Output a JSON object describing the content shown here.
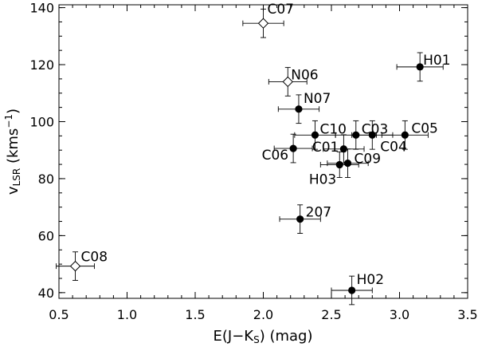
{
  "chart_data": {
    "type": "scatter",
    "title": "",
    "xlabel": "E(J−K",
    "xlabel_sub": "S",
    "xlabel_tail": ") (mag)",
    "ylabel": "v",
    "ylabel_sub": "LSR",
    "ylabel_tail": " (kms",
    "ylabel_sup": "−1",
    "ylabel_close": ")",
    "xlim": [
      0.5,
      3.5
    ],
    "ylim": [
      38,
      141
    ],
    "x_ticks": [
      0.5,
      1.0,
      1.5,
      2.0,
      2.5,
      3.0,
      3.5
    ],
    "x_tick_labels": [
      "0.5",
      "1.0",
      "1.5",
      "2.0",
      "2.5",
      "3.0",
      "3.5"
    ],
    "y_ticks": [
      40,
      60,
      80,
      100,
      120,
      140
    ],
    "y_tick_labels": [
      "40",
      "60",
      "80",
      "100",
      "120",
      "140"
    ],
    "grid": false,
    "points": [
      {
        "label": "C07",
        "x": 2.0,
        "y": 134.5,
        "xerr": 0.15,
        "yerr": 5.0,
        "marker": "open-diamond"
      },
      {
        "label": "H01",
        "x": 3.15,
        "y": 119.2,
        "xerr": 0.17,
        "yerr": 5.0,
        "marker": "filled-circle"
      },
      {
        "label": "N06",
        "x": 2.18,
        "y": 114.0,
        "xerr": 0.14,
        "yerr": 5.0,
        "marker": "open-diamond"
      },
      {
        "label": "N07",
        "x": 2.26,
        "y": 104.4,
        "xerr": 0.15,
        "yerr": 5.0,
        "marker": "filled-circle"
      },
      {
        "label": "C10",
        "x": 2.38,
        "y": 95.3,
        "xerr": 0.15,
        "yerr": 5.0,
        "marker": "filled-circle"
      },
      {
        "label": "C03",
        "x": 2.68,
        "y": 95.3,
        "xerr": 0.15,
        "yerr": 5.0,
        "marker": "filled-circle"
      },
      {
        "label": "C05",
        "x": 3.04,
        "y": 95.3,
        "xerr": 0.17,
        "yerr": 5.0,
        "marker": "filled-circle"
      },
      {
        "label": "C04",
        "x": 2.8,
        "y": 95.3,
        "xerr": 0.15,
        "yerr": 5.0,
        "marker": "filled-circle"
      },
      {
        "label": "C01",
        "x": 2.59,
        "y": 90.4,
        "xerr": 0.15,
        "yerr": 5.0,
        "marker": "filled-circle"
      },
      {
        "label": "C06",
        "x": 2.22,
        "y": 90.6,
        "xerr": 0.14,
        "yerr": 5.0,
        "marker": "filled-circle"
      },
      {
        "label": "C09",
        "x": 2.62,
        "y": 85.4,
        "xerr": 0.15,
        "yerr": 5.0,
        "marker": "filled-circle"
      },
      {
        "label": "H03",
        "x": 2.56,
        "y": 84.9,
        "xerr": 0.14,
        "yerr": 4.5,
        "marker": "filled-circle"
      },
      {
        "label": "207",
        "x": 2.27,
        "y": 65.8,
        "xerr": 0.15,
        "yerr": 5.0,
        "marker": "filled-circle"
      },
      {
        "label": "C08",
        "x": 0.62,
        "y": 49.3,
        "xerr": 0.14,
        "yerr": 5.0,
        "marker": "open-diamond"
      },
      {
        "label": "H02",
        "x": 2.65,
        "y": 40.8,
        "xerr": 0.15,
        "yerr": 5.0,
        "marker": "filled-circle"
      }
    ]
  }
}
